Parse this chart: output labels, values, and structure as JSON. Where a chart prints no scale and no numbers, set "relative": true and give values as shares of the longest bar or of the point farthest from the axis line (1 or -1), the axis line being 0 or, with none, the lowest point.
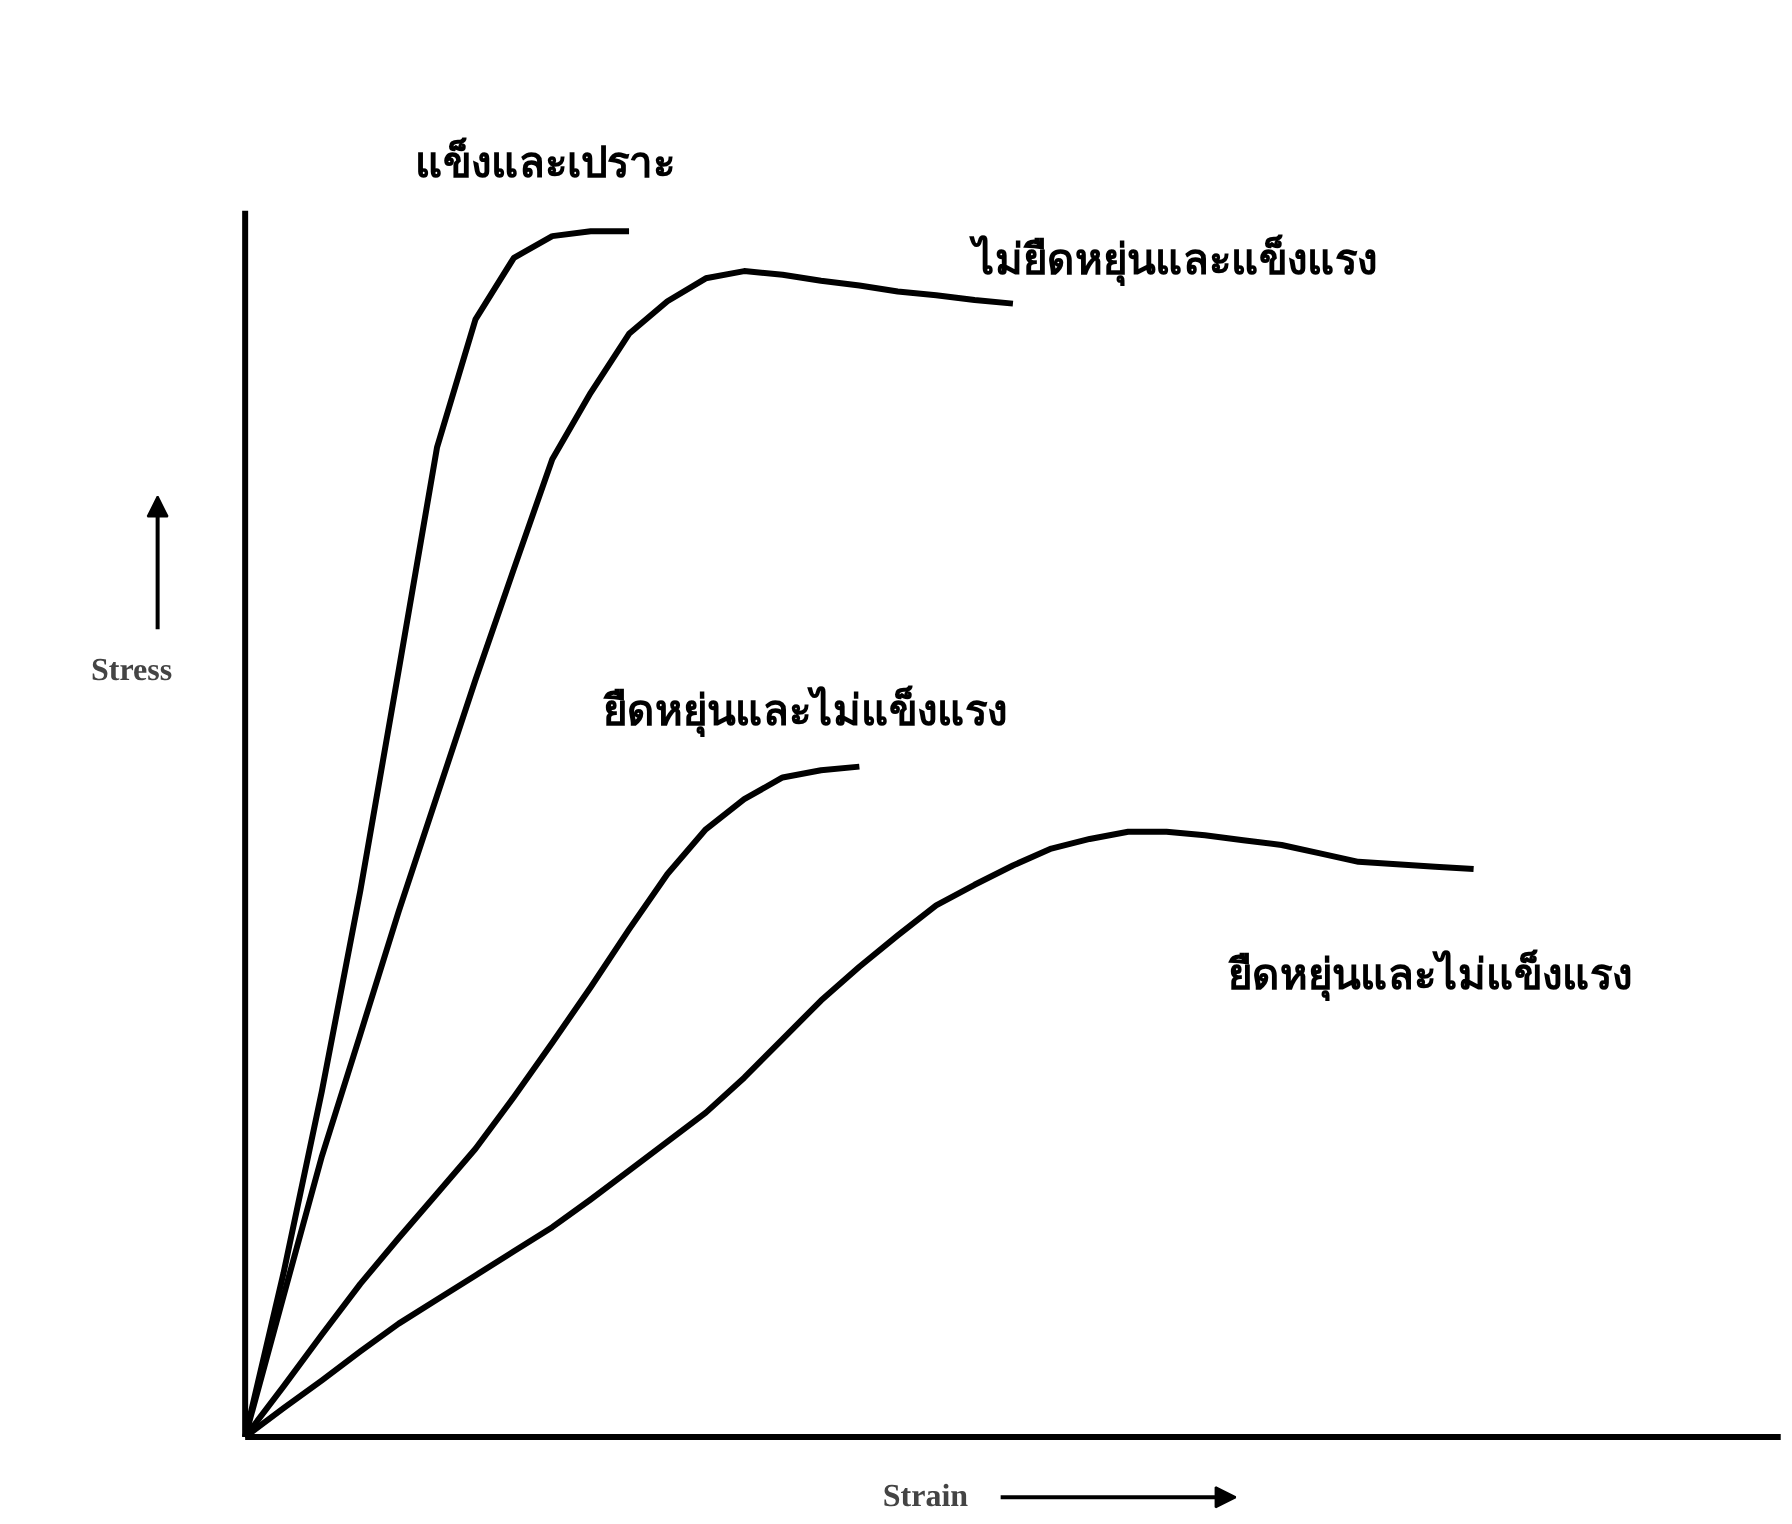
{
  "chart_data": {
    "type": "line",
    "relative": true,
    "xlabel": "Strain",
    "ylabel": "Stress",
    "legend": false,
    "grid": false,
    "marker": "none",
    "line_style": "solid",
    "categories": [
      null,
      null,
      null,
      null,
      null,
      null,
      null,
      null,
      null,
      null,
      null,
      null,
      null,
      null,
      null,
      null,
      null,
      null,
      null,
      null,
      null,
      null,
      null,
      null,
      null,
      null,
      null,
      null,
      null,
      null,
      null,
      null,
      null
    ],
    "series": [
      {
        "name": "แข็งและเปราะ",
        "color": "#000000",
        "values": [
          0,
          0.136,
          0.287,
          0.453,
          0.636,
          0.821,
          0.927,
          0.978,
          0.996,
          1,
          1,
          null,
          null,
          null,
          null,
          null,
          null,
          null,
          null,
          null,
          null,
          null,
          null,
          null,
          null,
          null,
          null,
          null,
          null,
          null,
          null,
          null,
          null
        ]
      },
      {
        "name": "ไม่ยืดหยุ่นและแข็งแรง",
        "color": "#000000",
        "values": [
          0,
          0.117,
          0.233,
          0.334,
          0.436,
          0.532,
          0.628,
          0.72,
          0.811,
          0.866,
          0.915,
          0.942,
          0.961,
          0.967,
          0.964,
          0.959,
          0.955,
          0.95,
          0.947,
          0.943,
          0.94,
          null,
          null,
          null,
          null,
          null,
          null,
          null,
          null,
          null,
          null,
          null,
          null
        ]
      },
      {
        "name": "ยืดหยุ่นและไม่แข็งแรง",
        "color": "#000000",
        "values": [
          0,
          0.042,
          0.085,
          0.127,
          0.165,
          0.202,
          0.239,
          0.282,
          0.327,
          0.373,
          0.421,
          0.467,
          0.504,
          0.529,
          0.547,
          0.553,
          0.556,
          null,
          null,
          null,
          null,
          null,
          null,
          null,
          null,
          null,
          null,
          null,
          null,
          null,
          null,
          null,
          null
        ]
      },
      {
        "name": "ยืดหยุ่นและไม่แข็งแรง",
        "color": "#000000",
        "values": [
          0,
          0.024,
          0.047,
          0.071,
          0.094,
          0.114,
          0.134,
          0.154,
          0.174,
          0.197,
          0.221,
          0.245,
          0.269,
          0.298,
          0.33,
          0.362,
          0.39,
          0.416,
          0.441,
          0.458,
          0.474,
          0.488,
          0.496,
          0.502,
          0.502,
          0.499,
          0.495,
          0.491,
          0.484,
          0.477,
          0.475,
          0.473,
          0.471
        ]
      }
    ]
  }
}
